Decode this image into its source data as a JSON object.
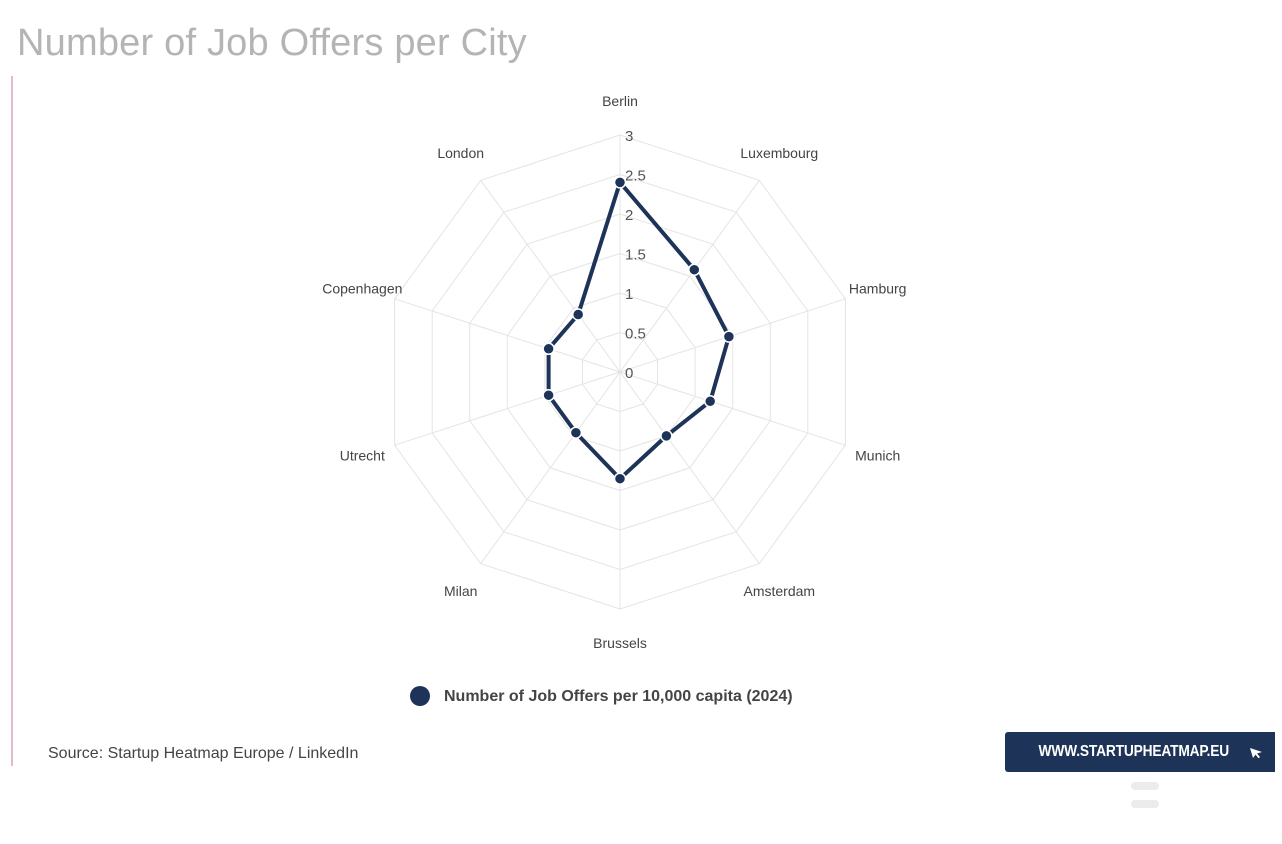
{
  "page": {
    "title": "Number of Job Offers per City",
    "source": "Source: Startup Heatmap Europe / LinkedIn",
    "badge_text": "WWW.STARTUPHEATMAP.EU",
    "colors": {
      "series": "#1d3458",
      "grid": "#e4e4e4",
      "title": "#b4b4b4",
      "accent": "#e7b6cf"
    }
  },
  "chart_data": {
    "type": "radar",
    "title": "Number of Job Offers per City",
    "categories": [
      "Berlin",
      "Luxembourg",
      "Hamburg",
      "Munich",
      "Amsterdam",
      "Brussels",
      "Milan",
      "Utrecht",
      "Copenhagen",
      "London"
    ],
    "series": [
      {
        "name": "Number of Job Offers per 10,000 capita (2024)",
        "values": [
          2.4,
          1.6,
          1.45,
          1.2,
          1.0,
          1.35,
          0.95,
          0.95,
          0.95,
          0.9
        ]
      }
    ],
    "ticks": [
      "0",
      "0.5",
      "1",
      "1.5",
      "2",
      "2.5",
      "3"
    ],
    "rlim": [
      0,
      3
    ],
    "grid": true,
    "legend": "bottom-center"
  }
}
